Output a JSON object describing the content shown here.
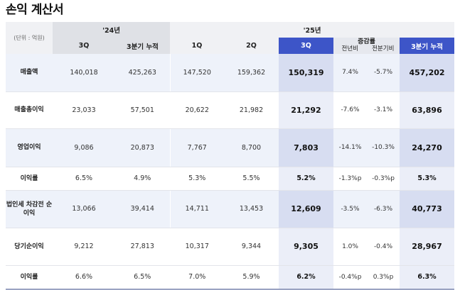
{
  "title": "손익 계산서",
  "header": {
    "unit": "(단위 : 억원)",
    "y24": "'24년",
    "y25": "'25년",
    "growth": "증감률",
    "cols": [
      "3Q",
      "3분기 누적",
      "1Q",
      "2Q",
      "3Q",
      "전년비",
      "전분기비",
      "3분기 누적"
    ]
  },
  "rows": [
    {
      "label": "매출액",
      "values": [
        "140,018",
        "425,263",
        "147,520",
        "159,362",
        "150,319",
        "7.4%",
        "-5.7%",
        "457,202"
      ]
    },
    {
      "label": "매출총이익",
      "values": [
        "23,033",
        "57,501",
        "20,622",
        "21,982",
        "21,292",
        "-7.6%",
        "-3.1%",
        "63,896"
      ]
    },
    {
      "label": "영업이익",
      "values": [
        "9,086",
        "20,873",
        "7,767",
        "8,700",
        "7,803",
        "-14.1%",
        "-10.3%",
        "24,270"
      ]
    },
    {
      "label": "이익률",
      "values": [
        "6.5%",
        "4.9%",
        "5.3%",
        "5.5%",
        "5.2%",
        "-1.3%p",
        "-0.3%p",
        "5.3%"
      ]
    },
    {
      "label": "법인세 차감전 순이익",
      "values": [
        "13,066",
        "39,414",
        "14,711",
        "13,453",
        "12,609",
        "-3.5%",
        "-6.3%",
        "40,773"
      ]
    },
    {
      "label": "당기순이익",
      "values": [
        "9,212",
        "27,813",
        "10,317",
        "9,344",
        "9,305",
        "1.0%",
        "-0.4%",
        "28,967"
      ]
    },
    {
      "label": "이익률",
      "values": [
        "6.6%",
        "6.5%",
        "7.0%",
        "5.9%",
        "6.2%",
        "-0.4%p",
        "0.3%p",
        "6.3%"
      ]
    }
  ]
}
